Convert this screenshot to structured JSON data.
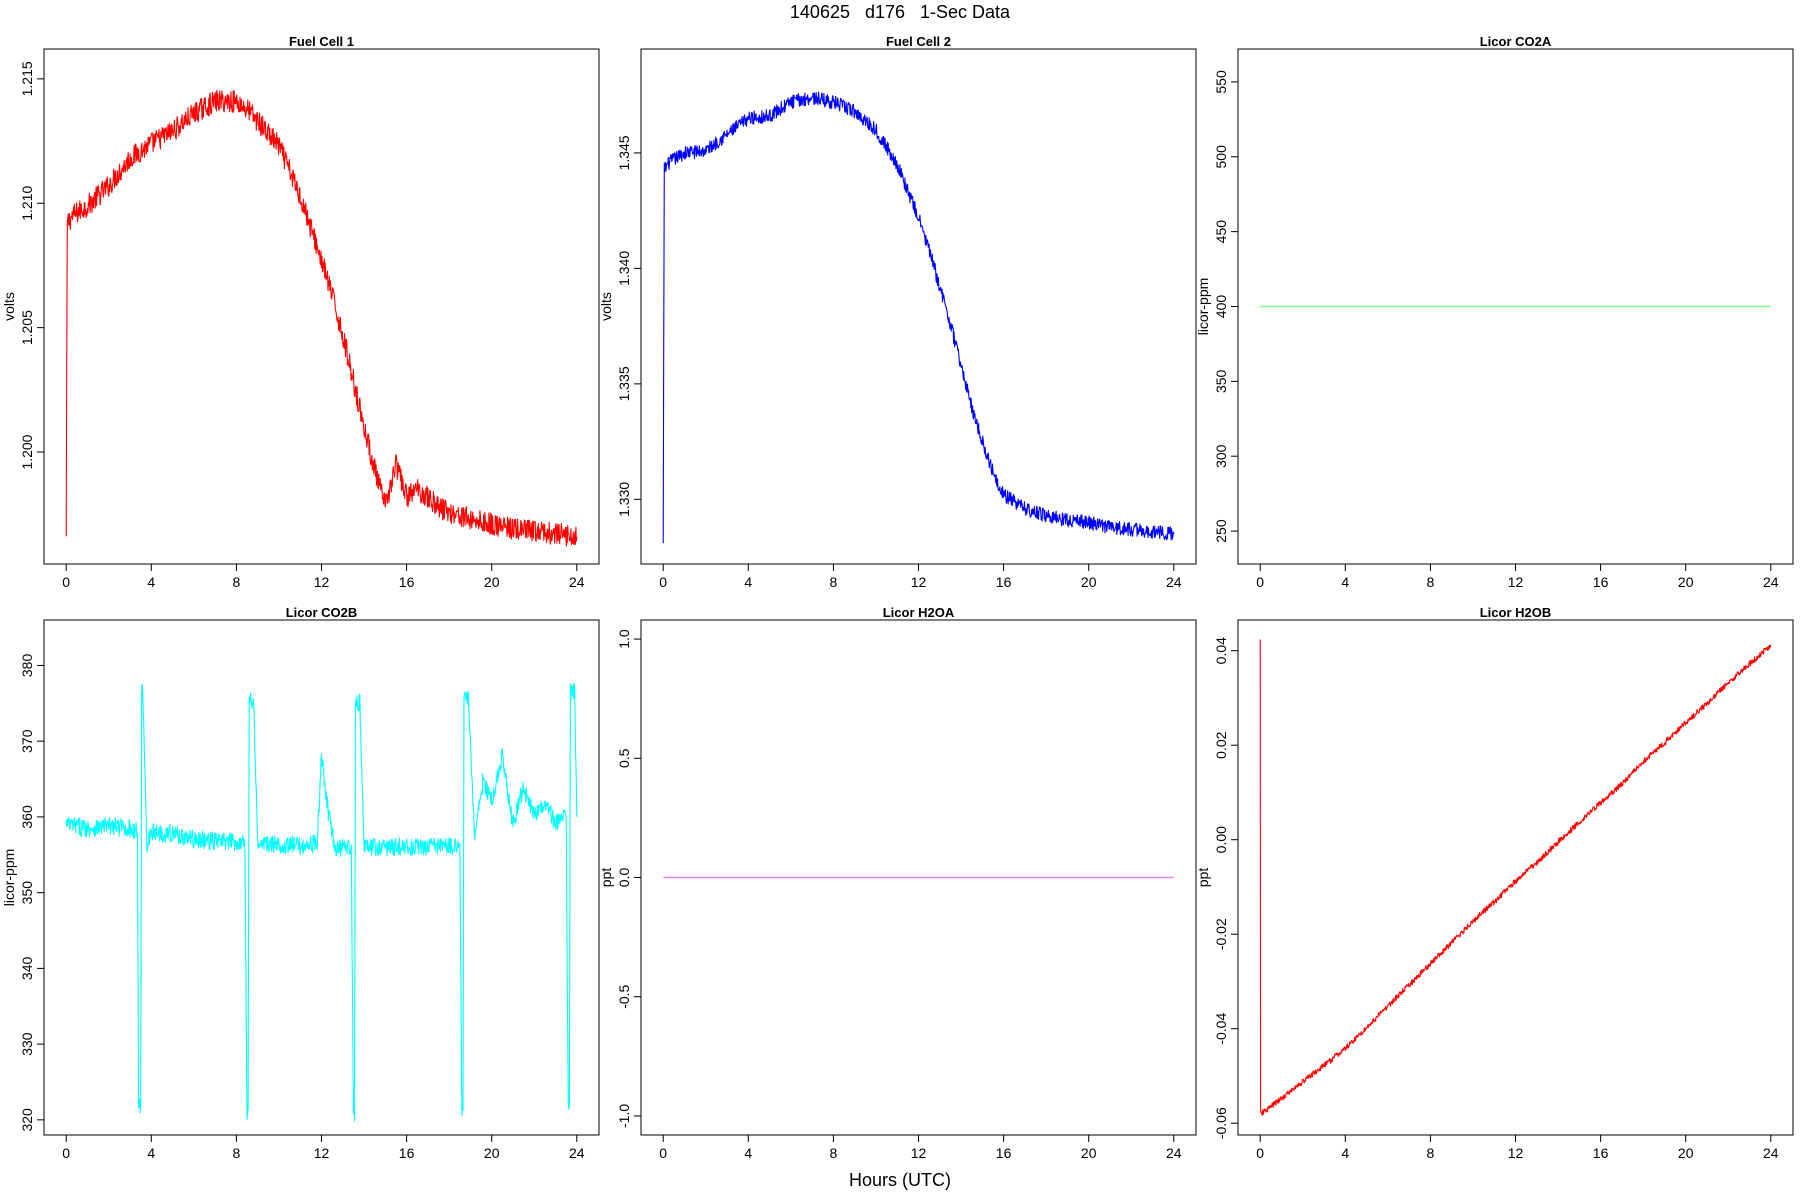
{
  "page_title": "140625   d176   1-Sec Data",
  "global_xlabel": "Hours (UTC)",
  "chart_data": [
    {
      "type": "line",
      "title": "Fuel Cell 1",
      "ylabel": "volts",
      "color": "#ff0000",
      "xlim": [
        0,
        24
      ],
      "ylim": [
        1.1955,
        1.2162
      ],
      "x_ticks": [
        "0",
        "4",
        "8",
        "12",
        "16",
        "20",
        "24"
      ],
      "y_ticks": [
        "1.200",
        "1.205",
        "1.210",
        "1.215"
      ],
      "series": [
        {
          "x": [
            0,
            0.05,
            0.3,
            1,
            2,
            3,
            4,
            5,
            6,
            7,
            8,
            8.6,
            9,
            10,
            11,
            12,
            12.5,
            13,
            13.5,
            14,
            14.5,
            15,
            15.5,
            16,
            16.5,
            17,
            17.5,
            18,
            19,
            20,
            21,
            22,
            23,
            24
          ],
          "y": [
            1.1965,
            1.2092,
            1.2095,
            1.2099,
            1.2107,
            1.2118,
            1.2124,
            1.2129,
            1.2136,
            1.2141,
            1.2141,
            1.2137,
            1.2133,
            1.2123,
            1.2103,
            1.2077,
            1.2063,
            1.2047,
            1.2029,
            1.201,
            1.1993,
            1.1978,
            1.1995,
            1.1982,
            1.1985,
            1.1982,
            1.1978,
            1.1976,
            1.1973,
            1.1971,
            1.1969,
            1.1968,
            1.1967,
            1.1966
          ]
        }
      ]
    },
    {
      "type": "line",
      "title": "Fuel Cell 2",
      "ylabel": "volts",
      "color": "#0000ff",
      "xlim": [
        0,
        24
      ],
      "ylim": [
        1.3272,
        1.3495
      ],
      "x_ticks": [
        "0",
        "4",
        "8",
        "12",
        "16",
        "20",
        "24"
      ],
      "y_ticks": [
        "1.330",
        "1.335",
        "1.340",
        "1.345"
      ],
      "series": [
        {
          "x": [
            0,
            0.05,
            0.3,
            1,
            2,
            3,
            4,
            5,
            6,
            7,
            8,
            9,
            10,
            11,
            12,
            12.5,
            13,
            13.5,
            14,
            14.5,
            15,
            15.5,
            16,
            17,
            18,
            19,
            20,
            21,
            22,
            23,
            24
          ],
          "y": [
            1.328,
            1.3443,
            1.3446,
            1.345,
            1.3451,
            1.3458,
            1.3465,
            1.3466,
            1.3472,
            1.3474,
            1.3472,
            1.3468,
            1.346,
            1.3445,
            1.3422,
            1.3408,
            1.3392,
            1.3376,
            1.3358,
            1.334,
            1.3325,
            1.3312,
            1.3302,
            1.3296,
            1.3293,
            1.3291,
            1.329,
            1.3288,
            1.3287,
            1.3286,
            1.3285
          ]
        }
      ]
    },
    {
      "type": "line",
      "title": "Licor CO2A",
      "ylabel": "licor-ppm",
      "color": "#7fff7f",
      "xlim": [
        0,
        24
      ],
      "ylim": [
        228,
        572
      ],
      "x_ticks": [
        "0",
        "4",
        "8",
        "12",
        "16",
        "20",
        "24"
      ],
      "y_ticks": [
        "250",
        "300",
        "350",
        "400",
        "450",
        "500",
        "550"
      ],
      "series": [
        {
          "x": [
            0,
            24
          ],
          "y": [
            400,
            400
          ]
        }
      ]
    },
    {
      "type": "line",
      "title": "Licor CO2B",
      "ylabel": "licor-ppm",
      "color": "#00ffff",
      "xlim": [
        0,
        24
      ],
      "ylim": [
        318,
        386
      ],
      "x_ticks": [
        "0",
        "4",
        "8",
        "12",
        "16",
        "20",
        "24"
      ],
      "y_ticks": [
        "320",
        "330",
        "340",
        "350",
        "360",
        "370",
        "380"
      ],
      "series": [
        {
          "x": [
            0,
            1,
            2,
            3,
            3.35,
            3.4,
            3.5,
            3.55,
            3.6,
            3.8,
            4,
            5,
            6,
            7,
            8,
            8.4,
            8.5,
            8.55,
            8.6,
            8.8,
            9,
            10,
            11,
            11.8,
            12,
            12.3,
            12.6,
            13.4,
            13.5,
            13.55,
            13.6,
            13.8,
            14,
            15,
            16,
            17,
            18,
            18.5,
            18.6,
            18.65,
            18.7,
            18.9,
            19.2,
            19.6,
            20,
            20.5,
            21,
            21.5,
            22,
            22.5,
            23,
            23.5,
            23.6,
            23.65,
            23.7,
            23.9,
            24
          ],
          "y": [
            359,
            358.5,
            358.8,
            358.5,
            358,
            322,
            322,
            376.5,
            376.5,
            356,
            358,
            357.8,
            357,
            356.8,
            356.7,
            356.6,
            321,
            321,
            375.5,
            375.5,
            356.5,
            356.3,
            356.2,
            356.5,
            368,
            361,
            356,
            355.8,
            321,
            321,
            375.2,
            375.2,
            356,
            356,
            356,
            356.1,
            356.2,
            356.3,
            321,
            321,
            375.8,
            375.8,
            357,
            365,
            362,
            368,
            359,
            364,
            360,
            362,
            359,
            360,
            321.5,
            321.5,
            376.5,
            376.5,
            360
          ]
        }
      ]
    },
    {
      "type": "line",
      "title": "Licor H2OA",
      "ylabel": "ppt",
      "color": "#ee82ee",
      "xlim": [
        0,
        24
      ],
      "ylim": [
        -1.08,
        1.08
      ],
      "x_ticks": [
        "0",
        "4",
        "8",
        "12",
        "16",
        "20",
        "24"
      ],
      "y_ticks": [
        "-1.0",
        "-0.5",
        "0.0",
        "0.5",
        "1.0"
      ],
      "series": [
        {
          "x": [
            0,
            24
          ],
          "y": [
            0,
            0
          ]
        }
      ]
    },
    {
      "type": "line",
      "title": "Licor H2OB",
      "ylabel": "ppt",
      "color": "#ff0000",
      "xlim": [
        0,
        24
      ],
      "ylim": [
        -0.0625,
        0.0465
      ],
      "x_ticks": [
        "0",
        "4",
        "8",
        "12",
        "16",
        "20",
        "24"
      ],
      "y_ticks": [
        "-0.06",
        "-0.04",
        "-0.02",
        "0.00",
        "0.02",
        "0.04"
      ],
      "series": [
        {
          "x": [
            0,
            0.02,
            0.05,
            0.5,
            1,
            2,
            3,
            4,
            5,
            6,
            7,
            8,
            9,
            10,
            11,
            12,
            13,
            14,
            15,
            16,
            17,
            18,
            19,
            20,
            21,
            22,
            23,
            24
          ],
          "y": [
            0.042,
            -0.058,
            -0.058,
            -0.0565,
            -0.0548,
            -0.0512,
            -0.0478,
            -0.0442,
            -0.0398,
            -0.0352,
            -0.0308,
            -0.0262,
            -0.0218,
            -0.0172,
            -0.0132,
            -0.0088,
            -0.0048,
            -0.0005,
            0.0038,
            0.0078,
            0.0118,
            0.0165,
            0.0205,
            0.0248,
            0.0288,
            0.0332,
            0.0372,
            0.0412
          ]
        }
      ]
    }
  ]
}
